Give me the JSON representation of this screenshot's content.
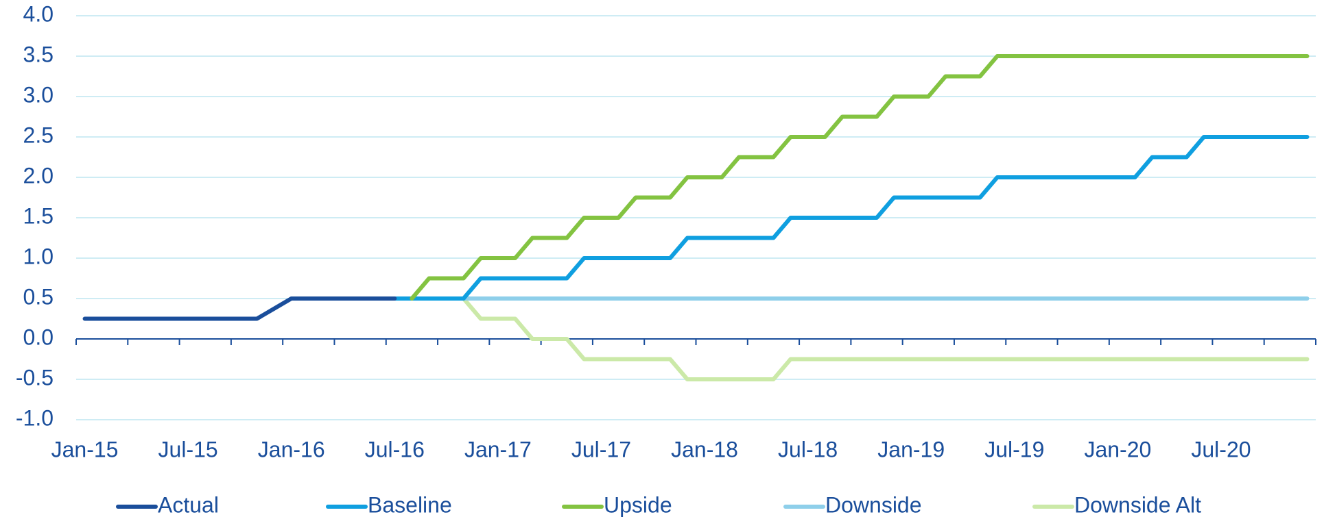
{
  "chart_data": {
    "type": "line",
    "categories": [
      "Jan-15",
      null,
      null,
      null,
      null,
      null,
      "Jul-15",
      null,
      null,
      null,
      null,
      null,
      "Jan-16",
      null,
      null,
      null,
      null,
      null,
      "Jul-16",
      null,
      null,
      null,
      null,
      null,
      "Jan-17",
      null,
      null,
      null,
      null,
      null,
      "Jul-17",
      null,
      null,
      null,
      null,
      null,
      "Jan-18",
      null,
      null,
      null,
      null,
      null,
      "Jul-18",
      null,
      null,
      null,
      null,
      null,
      "Jan-19",
      null,
      null,
      null,
      null,
      null,
      "Jul-19",
      null,
      null,
      null,
      null,
      null,
      "Jan-20",
      null,
      null,
      null,
      null,
      null,
      "Jul-20",
      null,
      null,
      null,
      null,
      null
    ],
    "series": [
      {
        "name": "Actual",
        "color": "#1a4e9b",
        "values": [
          0.25,
          0.25,
          0.25,
          0.25,
          0.25,
          0.25,
          0.25,
          0.25,
          0.25,
          0.25,
          0.25,
          0.375,
          0.5,
          0.5,
          0.5,
          0.5,
          0.5,
          0.5,
          0.5,
          null,
          null,
          null,
          null,
          null,
          null,
          null,
          null,
          null,
          null,
          null,
          null,
          null,
          null,
          null,
          null,
          null,
          null,
          null,
          null,
          null,
          null,
          null,
          null,
          null,
          null,
          null,
          null,
          null,
          null,
          null,
          null,
          null,
          null,
          null,
          null,
          null,
          null,
          null,
          null,
          null,
          null,
          null,
          null,
          null,
          null,
          null,
          null,
          null,
          null,
          null,
          null,
          null
        ]
      },
      {
        "name": "Baseline",
        "color": "#0f9fe0",
        "values": [
          null,
          null,
          null,
          null,
          null,
          null,
          null,
          null,
          null,
          null,
          null,
          null,
          null,
          null,
          null,
          null,
          null,
          null,
          0.5,
          0.5,
          0.5,
          0.5,
          0.5,
          0.75,
          0.75,
          0.75,
          0.75,
          0.75,
          0.75,
          1.0,
          1.0,
          1.0,
          1.0,
          1.0,
          1.0,
          1.25,
          1.25,
          1.25,
          1.25,
          1.25,
          1.25,
          1.5,
          1.5,
          1.5,
          1.5,
          1.5,
          1.5,
          1.75,
          1.75,
          1.75,
          1.75,
          1.75,
          1.75,
          2.0,
          2.0,
          2.0,
          2.0,
          2.0,
          2.0,
          2.0,
          2.0,
          2.0,
          2.25,
          2.25,
          2.25,
          2.5,
          2.5,
          2.5,
          2.5,
          2.5,
          2.5,
          2.5
        ]
      },
      {
        "name": "Upside",
        "color": "#83c341",
        "values": [
          null,
          null,
          null,
          null,
          null,
          null,
          null,
          null,
          null,
          null,
          null,
          null,
          null,
          null,
          null,
          null,
          null,
          null,
          null,
          0.5,
          0.75,
          0.75,
          0.75,
          1.0,
          1.0,
          1.0,
          1.25,
          1.25,
          1.25,
          1.5,
          1.5,
          1.5,
          1.75,
          1.75,
          1.75,
          2.0,
          2.0,
          2.0,
          2.25,
          2.25,
          2.25,
          2.5,
          2.5,
          2.5,
          2.75,
          2.75,
          2.75,
          3.0,
          3.0,
          3.0,
          3.25,
          3.25,
          3.25,
          3.5,
          3.5,
          3.5,
          3.5,
          3.5,
          3.5,
          3.5,
          3.5,
          3.5,
          3.5,
          3.5,
          3.5,
          3.5,
          3.5,
          3.5,
          3.5,
          3.5,
          3.5,
          3.5
        ]
      },
      {
        "name": "Downside",
        "color": "#8ecfea",
        "values": [
          null,
          null,
          null,
          null,
          null,
          null,
          null,
          null,
          null,
          null,
          null,
          null,
          null,
          null,
          null,
          null,
          null,
          null,
          null,
          null,
          null,
          null,
          0.5,
          0.5,
          0.5,
          0.5,
          0.5,
          0.5,
          0.5,
          0.5,
          0.5,
          0.5,
          0.5,
          0.5,
          0.5,
          0.5,
          0.5,
          0.5,
          0.5,
          0.5,
          0.5,
          0.5,
          0.5,
          0.5,
          0.5,
          0.5,
          0.5,
          0.5,
          0.5,
          0.5,
          0.5,
          0.5,
          0.5,
          0.5,
          0.5,
          0.5,
          0.5,
          0.5,
          0.5,
          0.5,
          0.5,
          0.5,
          0.5,
          0.5,
          0.5,
          0.5,
          0.5,
          0.5,
          0.5,
          0.5,
          0.5,
          0.5
        ]
      },
      {
        "name": "Downside Alt",
        "color": "#cbe9a8",
        "values": [
          null,
          null,
          null,
          null,
          null,
          null,
          null,
          null,
          null,
          null,
          null,
          null,
          null,
          null,
          null,
          null,
          null,
          null,
          null,
          null,
          null,
          null,
          0.5,
          0.25,
          0.25,
          0.25,
          0,
          0,
          0,
          -0.25,
          -0.25,
          -0.25,
          -0.25,
          -0.25,
          -0.25,
          -0.5,
          -0.5,
          -0.5,
          -0.5,
          -0.5,
          -0.5,
          -0.25,
          -0.25,
          -0.25,
          -0.25,
          -0.25,
          -0.25,
          -0.25,
          -0.25,
          -0.25,
          -0.25,
          -0.25,
          -0.25,
          -0.25,
          -0.25,
          -0.25,
          -0.25,
          -0.25,
          -0.25,
          -0.25,
          -0.25,
          -0.25,
          -0.25,
          -0.25,
          -0.25,
          -0.25,
          -0.25,
          -0.25,
          -0.25,
          -0.25,
          -0.25,
          -0.25
        ]
      }
    ],
    "ylim": [
      -1,
      4
    ],
    "yticks": [
      {
        "value": -1,
        "label": "-1.0"
      },
      -0.5,
      {
        "value": 0,
        "label": "0.0"
      },
      0.5,
      {
        "value": 1,
        "label": "1.0"
      },
      1.5,
      {
        "value": 2,
        "label": "2.0"
      },
      2.5,
      {
        "value": 3,
        "label": "3.0"
      },
      3.5,
      {
        "value": 4,
        "label": "4.0"
      }
    ],
    "grid": true,
    "legend": "bottom"
  }
}
